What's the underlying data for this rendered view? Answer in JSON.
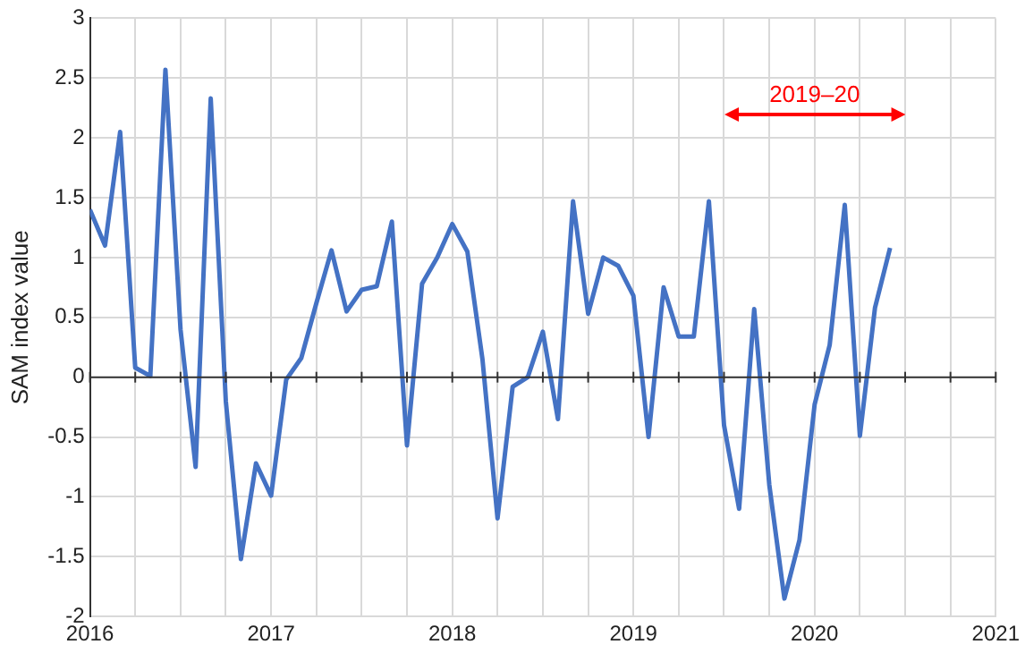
{
  "chart_data": {
    "type": "line",
    "ylabel": "SAM index value",
    "x": [
      "2016-01",
      "2016-02",
      "2016-03",
      "2016-04",
      "2016-05",
      "2016-06",
      "2016-07",
      "2016-08",
      "2016-09",
      "2016-10",
      "2016-11",
      "2016-12",
      "2017-01",
      "2017-02",
      "2017-03",
      "2017-04",
      "2017-05",
      "2017-06",
      "2017-07",
      "2017-08",
      "2017-09",
      "2017-10",
      "2017-11",
      "2017-12",
      "2018-01",
      "2018-02",
      "2018-03",
      "2018-04",
      "2018-05",
      "2018-06",
      "2018-07",
      "2018-08",
      "2018-09",
      "2018-10",
      "2018-11",
      "2018-12",
      "2019-01",
      "2019-02",
      "2019-03",
      "2019-04",
      "2019-05",
      "2019-06",
      "2019-07",
      "2019-08",
      "2019-09",
      "2019-10",
      "2019-11",
      "2019-12",
      "2020-01",
      "2020-02",
      "2020-03",
      "2020-04",
      "2020-05",
      "2020-06"
    ],
    "series": [
      {
        "color": "#4472c4",
        "values": [
          1.4,
          1.1,
          2.05,
          0.08,
          0.01,
          2.57,
          0.4,
          -0.75,
          2.33,
          -0.2,
          -1.52,
          -0.72,
          -0.99,
          -0.02,
          0.16,
          0.62,
          1.06,
          0.55,
          0.73,
          0.76,
          1.3,
          -0.57,
          0.78,
          1.0,
          1.28,
          1.05,
          0.15,
          -1.18,
          -0.08,
          0.0,
          0.38,
          -0.35,
          1.47,
          0.53,
          1.0,
          0.93,
          0.68,
          -0.5,
          0.75,
          0.34,
          0.34,
          1.47,
          -0.4,
          -1.1,
          0.57,
          -0.9,
          -1.85,
          -1.36,
          -0.23,
          0.27,
          1.44,
          -0.49,
          0.58,
          1.08
        ]
      }
    ],
    "xlim": [
      "2016",
      "2021"
    ],
    "xticks": [
      "2016",
      {
        "value": "2016-04",
        "label": null
      },
      {
        "value": "2016-07",
        "label": null
      },
      {
        "value": "2016-10",
        "label": null
      },
      "2017",
      {
        "value": "2017-04",
        "label": null
      },
      {
        "value": "2017-07",
        "label": null
      },
      {
        "value": "2017-10",
        "label": null
      },
      "2018",
      {
        "value": "2018-04",
        "label": null
      },
      {
        "value": "2018-07",
        "label": null
      },
      {
        "value": "2018-10",
        "label": null
      },
      "2019",
      {
        "value": "2019-04",
        "label": null
      },
      {
        "value": "2019-07",
        "label": null
      },
      {
        "value": "2019-10",
        "label": null
      },
      "2020",
      {
        "value": "2020-04",
        "label": null
      },
      {
        "value": "2020-07",
        "label": null
      },
      {
        "value": "2020-10",
        "label": null
      },
      "2021"
    ],
    "ylim": [
      -2,
      3
    ],
    "yticks": [
      -2,
      -1.5,
      -1,
      -0.5,
      0,
      0.5,
      1,
      1.5,
      2,
      2.5,
      3
    ],
    "annotations": [
      "2019–20"
    ],
    "grid": true,
    "legend": false,
    "marker": "none",
    "line_style": "solid"
  }
}
